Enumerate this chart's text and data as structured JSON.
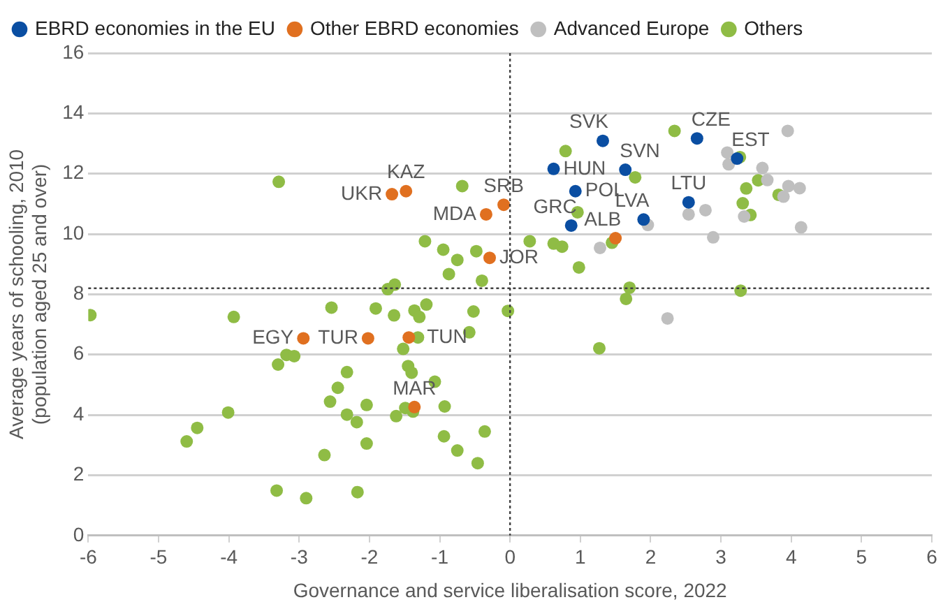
{
  "chart_data": {
    "type": "scatter",
    "xlabel": "Governance and service liberalisation score, 2022",
    "ylabel": "Average years of schooling, 2010\n(population aged 25 and over)",
    "xlim": [
      -6,
      6
    ],
    "xticks": [
      -6,
      -5,
      -4,
      -3,
      -2,
      -1,
      0,
      1,
      2,
      3,
      4,
      5,
      6
    ],
    "ylim": [
      0,
      16
    ],
    "yticks": [
      0,
      2,
      4,
      6,
      8,
      10,
      12,
      14,
      16
    ],
    "grid": "y",
    "legend": "top left",
    "marker": "circle",
    "series": [
      {
        "name": "EBRD economies in the EU",
        "color": "#0a4ea2",
        "x": [
          1.32,
          2.66,
          3.23,
          0.62,
          1.64,
          0.93,
          2.54,
          1.9,
          0.87
        ],
        "values": [
          13.09,
          13.17,
          12.5,
          12.16,
          12.13,
          11.42,
          11.05,
          10.48,
          10.28
        ]
      },
      {
        "name": "Other EBRD economies",
        "color": "#e07020",
        "x": [
          -1.68,
          -1.48,
          -0.09,
          -0.34,
          -0.29,
          1.5,
          -2.94,
          -2.02,
          -1.44,
          -1.36
        ],
        "values": [
          11.32,
          11.42,
          10.97,
          10.65,
          9.21,
          9.86,
          6.54,
          6.54,
          6.57,
          4.26
        ]
      },
      {
        "name": "Advanced Europe",
        "color": "#bfbfbf",
        "x": [
          3.95,
          3.09,
          3.11,
          3.59,
          3.66,
          3.96,
          4.12,
          3.89,
          2.78,
          2.54,
          3.33,
          1.96,
          4.14,
          2.89,
          1.28,
          2.24
        ],
        "values": [
          13.42,
          12.7,
          12.31,
          12.19,
          11.79,
          11.59,
          11.52,
          11.24,
          10.79,
          10.65,
          10.58,
          10.3,
          10.22,
          9.89,
          9.54,
          7.2
        ]
      },
      {
        "name": "Others",
        "color": "#8fbc45",
        "x": [
          -3.29,
          -0.68,
          -1.21,
          -0.95,
          -0.48,
          -0.75,
          -0.87,
          -0.4,
          -1.74,
          -1.64,
          -5.97,
          -3.93,
          -2.54,
          -1.91,
          -1.65,
          -1.36,
          -1.29,
          -1.19,
          -0.52,
          -0.03,
          -0.58,
          -1.31,
          -3.3,
          -3.18,
          -3.07,
          -1.52,
          -1.45,
          -1.4,
          -1.07,
          -2.32,
          -2.45,
          -2.56,
          -2.04,
          -2.32,
          -2.18,
          -1.49,
          -1.38,
          -1.62,
          -0.93,
          -4.01,
          -4.45,
          -4.6,
          -2.04,
          -0.94,
          -0.36,
          -0.75,
          -2.64,
          -0.46,
          -3.32,
          -2.17,
          -2.9,
          2.34,
          0.79,
          3.27,
          1.78,
          3.53,
          3.36,
          3.82,
          3.31,
          0.96,
          3.42,
          0.28,
          0.62,
          0.74,
          1.45,
          0.98,
          1.7,
          1.65,
          3.28,
          1.27
        ],
        "values": [
          11.73,
          11.59,
          9.76,
          9.48,
          9.43,
          9.14,
          8.67,
          8.45,
          8.17,
          8.32,
          7.31,
          7.25,
          7.56,
          7.53,
          7.3,
          7.46,
          7.25,
          7.66,
          7.43,
          7.45,
          6.74,
          6.57,
          5.67,
          5.99,
          5.95,
          6.19,
          5.62,
          5.4,
          5.1,
          5.42,
          4.9,
          4.44,
          4.33,
          4.01,
          3.76,
          4.23,
          4.11,
          3.96,
          4.28,
          4.08,
          3.57,
          3.12,
          3.05,
          3.29,
          3.45,
          2.82,
          2.67,
          2.4,
          1.49,
          1.44,
          1.24,
          13.42,
          12.75,
          12.55,
          11.88,
          11.78,
          11.51,
          11.3,
          11.02,
          10.72,
          10.63,
          9.76,
          9.68,
          9.58,
          9.71,
          8.89,
          8.22,
          7.85,
          8.12,
          6.21
        ]
      }
    ],
    "ref_lines": [
      {
        "axis": "x",
        "value": 0,
        "line_style": "dotted",
        "color": "#404040"
      },
      {
        "axis": "y",
        "value": 8.2,
        "line_style": "dotted",
        "color": "#404040"
      }
    ],
    "annotations": [
      {
        "text": "SVK",
        "x": 1.32,
        "y": 13.09
      },
      {
        "text": "CZE",
        "x": 2.66,
        "y": 13.17
      },
      {
        "text": "EST",
        "x": 3.23,
        "y": 12.5
      },
      {
        "text": "HUN",
        "x": 0.62,
        "y": 12.16
      },
      {
        "text": "SVN",
        "x": 1.64,
        "y": 12.13
      },
      {
        "text": "POL",
        "x": 0.93,
        "y": 11.42
      },
      {
        "text": "LTU",
        "x": 2.54,
        "y": 11.05
      },
      {
        "text": "LVA",
        "x": 1.9,
        "y": 10.48
      },
      {
        "text": "GRC",
        "x": 0.87,
        "y": 10.28
      },
      {
        "text": "UKR",
        "x": -1.68,
        "y": 11.32
      },
      {
        "text": "KAZ",
        "x": -1.48,
        "y": 11.42
      },
      {
        "text": "SRB",
        "x": -0.09,
        "y": 10.97
      },
      {
        "text": "MDA",
        "x": -0.34,
        "y": 10.65
      },
      {
        "text": "JOR",
        "x": -0.29,
        "y": 9.21
      },
      {
        "text": "ALB",
        "x": 1.5,
        "y": 9.86
      },
      {
        "text": "EGY",
        "x": -2.94,
        "y": 6.54
      },
      {
        "text": "TUR",
        "x": -2.02,
        "y": 6.54
      },
      {
        "text": "TUN",
        "x": -1.44,
        "y": 6.57
      },
      {
        "text": "MAR",
        "x": -1.36,
        "y": 4.26
      }
    ]
  }
}
